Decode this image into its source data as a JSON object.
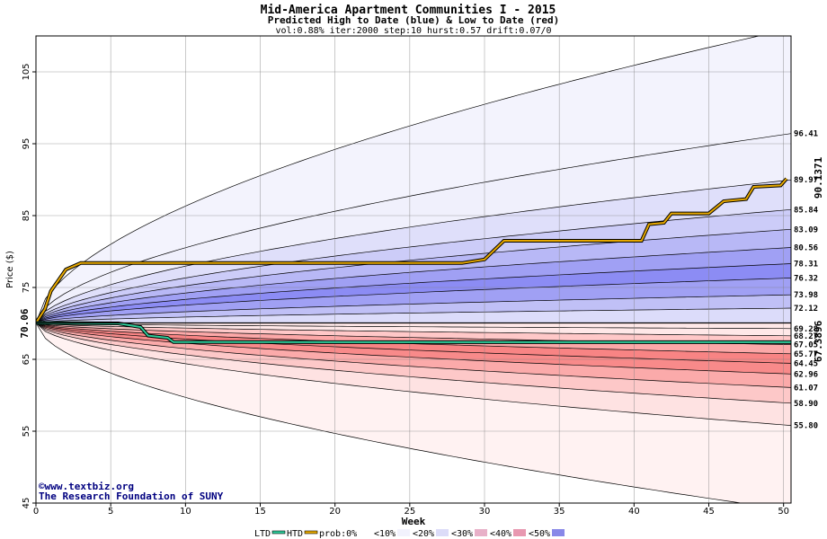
{
  "chart_data": {
    "type": "area",
    "title": "Mid-America Apartment Communities I - 2015",
    "subtitle": "Predicted High to Date (blue) &  Low to Date (red)",
    "params": "vol:0.88% iter:2000 step:10 hurst:0.57 drift:0.07/0",
    "xlabel": "Week",
    "ylabel": "Price ($)",
    "xlim": [
      0,
      50.5
    ],
    "ylim": [
      45,
      110
    ],
    "x_ticks": [
      0,
      5,
      10,
      15,
      20,
      25,
      30,
      35,
      40,
      45,
      50
    ],
    "y_ticks": [
      45,
      55,
      65,
      75,
      85,
      95,
      105
    ],
    "grid": true,
    "start_price": 70.06,
    "start_label": "70.06",
    "ltd_final_label": "67.3896",
    "htd_final_label": "90.1371",
    "colors": {
      "ltd": "#2ecc9a",
      "htd": "#e6a800",
      "start": "#006000",
      "ltd_label": "#008060",
      "htd_label": "#a06000"
    },
    "right_labels": [
      "96.41",
      "89.97",
      "85.84",
      "83.09",
      "80.56",
      "78.31",
      "76.32",
      "73.98",
      "72.12",
      "69.28",
      "68.27",
      "67.05",
      "65.77",
      "64.45",
      "62.96",
      "61.07",
      "58.90",
      "55.80"
    ],
    "upper_bands": [
      {
        "end": 96.41,
        "fill": "#f0f0fc"
      },
      {
        "end": 89.97,
        "fill": "#dfdffa"
      },
      {
        "end": 85.84,
        "fill": "#ccccf8"
      },
      {
        "end": 83.09,
        "fill": "#b8b8f6"
      },
      {
        "end": 80.56,
        "fill": "#a0a0f4"
      },
      {
        "end": 78.31,
        "fill": "#8c8cf4"
      },
      {
        "end": 76.32,
        "fill": "#a0a0f4"
      },
      {
        "end": 73.98,
        "fill": "#c0c0f6"
      },
      {
        "end": 72.12,
        "fill": "#dcdcfa"
      },
      {
        "end": 69.28,
        "fill": "#fbfbff"
      }
    ],
    "lower_bands": [
      {
        "end": 68.27,
        "fill": "#ffe8e8"
      },
      {
        "end": 67.05,
        "fill": "#ffc8c8"
      },
      {
        "end": 65.77,
        "fill": "#fca8a8"
      },
      {
        "end": 64.45,
        "fill": "#f88484"
      },
      {
        "end": 62.96,
        "fill": "#f88a8a"
      },
      {
        "end": 61.07,
        "fill": "#fbaaaa"
      },
      {
        "end": 58.9,
        "fill": "#fdc8c8"
      },
      {
        "end": 55.8,
        "fill": "#fee2e2"
      }
    ],
    "outer_upper": {
      "end": 111.0,
      "fill": "#f3f3fd"
    },
    "outer_lower": {
      "end": 44.0,
      "fill": "#fff2f2"
    },
    "series": [
      {
        "name": "HTD",
        "points": [
          [
            0,
            70.06
          ],
          [
            0.6,
            72.0
          ],
          [
            1.0,
            74.5
          ],
          [
            1.5,
            76.0
          ],
          [
            2.0,
            77.5
          ],
          [
            3.0,
            78.4
          ],
          [
            28.5,
            78.4
          ],
          [
            30.0,
            78.9
          ],
          [
            31.3,
            81.5
          ],
          [
            40.5,
            81.5
          ],
          [
            41.0,
            83.8
          ],
          [
            42.0,
            84.0
          ],
          [
            42.5,
            85.3
          ],
          [
            45.0,
            85.3
          ],
          [
            46.0,
            87.0
          ],
          [
            47.5,
            87.3
          ],
          [
            48.0,
            89.0
          ],
          [
            49.8,
            89.2
          ],
          [
            50.2,
            90.14
          ]
        ]
      },
      {
        "name": "LTD",
        "points": [
          [
            0,
            70.06
          ],
          [
            5.5,
            70.0
          ],
          [
            7.0,
            69.5
          ],
          [
            7.5,
            68.3
          ],
          [
            8.8,
            68.0
          ],
          [
            9.2,
            67.4
          ],
          [
            50.5,
            67.39
          ]
        ]
      }
    ],
    "legend": {
      "ltd": "LTD",
      "htd": "HTD",
      "prob_items": [
        "prob:0%",
        "<10%",
        "<20%",
        "<30%",
        "<40%",
        "<50%"
      ],
      "prob_colors": [
        "#ffffff",
        "#f2f2fd",
        "#dcdcf8",
        "#e8b0c8",
        "#e898b0",
        "#8888e8"
      ]
    }
  },
  "watermark": {
    "line1": "©www.textbiz.org",
    "line2": "The Research Foundation of SUNY"
  }
}
